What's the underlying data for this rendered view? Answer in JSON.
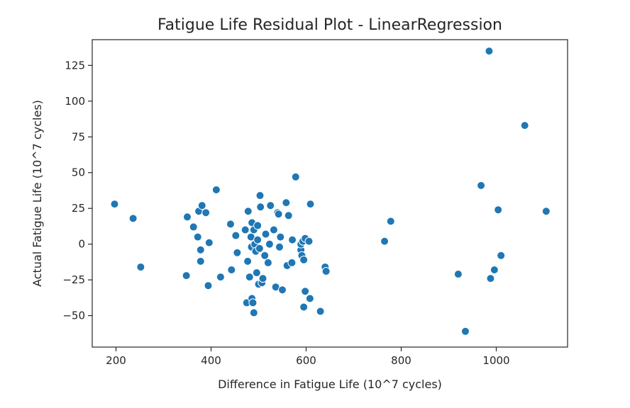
{
  "chart_data": {
    "type": "scatter",
    "title": "Fatigue Life Residual Plot - LinearRegression",
    "xlabel": "Difference in Fatigue Life (10^7 cycles)",
    "ylabel": "Actual Fatigue Life (10^7 cycles)",
    "xlim": [
      150,
      1150
    ],
    "ylim": [
      -72,
      143
    ],
    "xticks": [
      200,
      400,
      600,
      800,
      1000
    ],
    "yticks": [
      -50,
      -25,
      0,
      25,
      50,
      75,
      100,
      125
    ],
    "color": "#1f77b4",
    "grid": false,
    "points": [
      [
        197,
        28
      ],
      [
        236,
        18
      ],
      [
        252,
        -16
      ],
      [
        348,
        -22
      ],
      [
        350,
        19
      ],
      [
        363,
        12
      ],
      [
        372,
        5
      ],
      [
        374,
        23
      ],
      [
        378,
        -4
      ],
      [
        378,
        -12
      ],
      [
        381,
        27
      ],
      [
        389,
        22
      ],
      [
        394,
        -29
      ],
      [
        396,
        1
      ],
      [
        411,
        38
      ],
      [
        420,
        -23
      ],
      [
        441,
        14
      ],
      [
        443,
        -18
      ],
      [
        452,
        6
      ],
      [
        455,
        -6
      ],
      [
        472,
        10
      ],
      [
        475,
        -41
      ],
      [
        477,
        -12
      ],
      [
        478,
        23
      ],
      [
        481,
        -23
      ],
      [
        485,
        -2
      ],
      [
        484,
        5
      ],
      [
        486,
        15
      ],
      [
        486,
        -38
      ],
      [
        488,
        -41
      ],
      [
        490,
        -48
      ],
      [
        490,
        10
      ],
      [
        492,
        0
      ],
      [
        494,
        -5
      ],
      [
        496,
        -20
      ],
      [
        498,
        13
      ],
      [
        498,
        3
      ],
      [
        500,
        -28
      ],
      [
        502,
        -3
      ],
      [
        503,
        34
      ],
      [
        504,
        26
      ],
      [
        507,
        -27
      ],
      [
        509,
        -24
      ],
      [
        513,
        -8
      ],
      [
        515,
        7
      ],
      [
        520,
        -13
      ],
      [
        523,
        0
      ],
      [
        525,
        27
      ],
      [
        532,
        10
      ],
      [
        536,
        -30
      ],
      [
        540,
        22
      ],
      [
        542,
        21
      ],
      [
        544,
        -2
      ],
      [
        546,
        5
      ],
      [
        550,
        -32
      ],
      [
        558,
        29
      ],
      [
        560,
        -15
      ],
      [
        563,
        20
      ],
      [
        570,
        -13
      ],
      [
        571,
        3
      ],
      [
        578,
        47
      ],
      [
        589,
        -4
      ],
      [
        589,
        0
      ],
      [
        591,
        -8
      ],
      [
        593,
        2
      ],
      [
        595,
        -11
      ],
      [
        595,
        -44
      ],
      [
        598,
        -33
      ],
      [
        598,
        4
      ],
      [
        606,
        2
      ],
      [
        608,
        -38
      ],
      [
        609,
        28
      ],
      [
        630,
        -47
      ],
      [
        640,
        -16
      ],
      [
        642,
        -19
      ],
      [
        765,
        2
      ],
      [
        778,
        16
      ],
      [
        920,
        -21
      ],
      [
        935,
        -61
      ],
      [
        968,
        41
      ],
      [
        985,
        135
      ],
      [
        988,
        -24
      ],
      [
        996,
        -18
      ],
      [
        1004,
        24
      ],
      [
        1010,
        -8
      ],
      [
        1060,
        83
      ],
      [
        1105,
        23
      ]
    ]
  }
}
